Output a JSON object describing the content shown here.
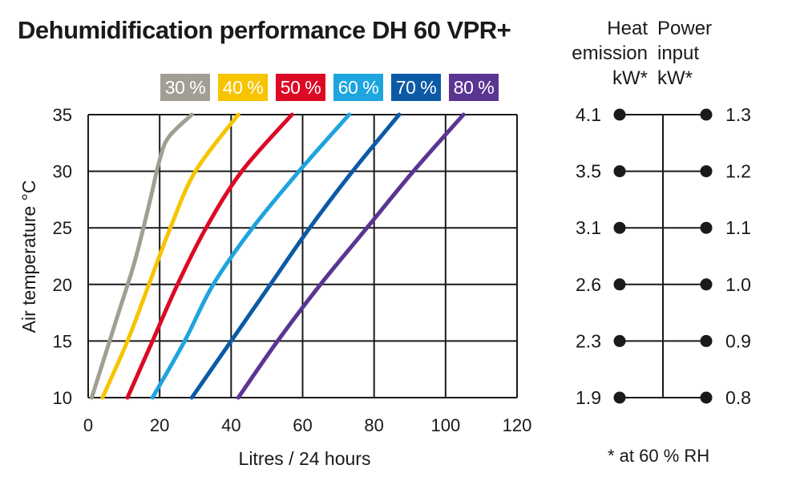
{
  "title": "Dehumidification performance DH 60 VPR+",
  "legend": [
    {
      "label": "30 %",
      "color": "#a19f94"
    },
    {
      "label": "40 %",
      "color": "#f6c400"
    },
    {
      "label": "50 %",
      "color": "#dc0a25"
    },
    {
      "label": "60 %",
      "color": "#1ea4de"
    },
    {
      "label": "70 %",
      "color": "#0c5aa6"
    },
    {
      "label": "80 %",
      "color": "#5a3592"
    }
  ],
  "chart_data": {
    "type": "line",
    "xlabel": "Litres / 24 hours",
    "ylabel": "Air temperature °C",
    "xlim": [
      0,
      120
    ],
    "ylim": [
      10,
      35
    ],
    "xticks": [
      "0",
      "20",
      "40",
      "60",
      "80",
      "100",
      "120"
    ],
    "yticks": [
      "10",
      "15",
      "20",
      "25",
      "30",
      "35"
    ],
    "grid": true,
    "legend_position": "top",
    "series": [
      {
        "name": "30 %",
        "color": "#a19f94",
        "points": [
          [
            1,
            10
          ],
          [
            8,
            17
          ],
          [
            13,
            22
          ],
          [
            17,
            27
          ],
          [
            20,
            31
          ],
          [
            22.5,
            33
          ],
          [
            29,
            35
          ]
        ]
      },
      {
        "name": "40 %",
        "color": "#f6c400",
        "points": [
          [
            4,
            10
          ],
          [
            11,
            15
          ],
          [
            17,
            20
          ],
          [
            23,
            25
          ],
          [
            30,
            30
          ],
          [
            42,
            35
          ]
        ]
      },
      {
        "name": "50 %",
        "color": "#dc0a25",
        "points": [
          [
            11,
            10
          ],
          [
            18,
            15
          ],
          [
            25,
            20
          ],
          [
            33,
            25
          ],
          [
            43,
            30
          ],
          [
            57,
            35
          ]
        ]
      },
      {
        "name": "60 %",
        "color": "#1ea4de",
        "points": [
          [
            18,
            10
          ],
          [
            27,
            15
          ],
          [
            35,
            20
          ],
          [
            46,
            25
          ],
          [
            59,
            30
          ],
          [
            73,
            35
          ]
        ]
      },
      {
        "name": "70 %",
        "color": "#0c5aa6",
        "points": [
          [
            29,
            10
          ],
          [
            40,
            15
          ],
          [
            51,
            20
          ],
          [
            62,
            25
          ],
          [
            74,
            30
          ],
          [
            87,
            35
          ]
        ]
      },
      {
        "name": "80 %",
        "color": "#5a3592",
        "points": [
          [
            42,
            10
          ],
          [
            53,
            15
          ],
          [
            65,
            20
          ],
          [
            78,
            25
          ],
          [
            91,
            30
          ],
          [
            105,
            35
          ]
        ]
      }
    ]
  },
  "side_scale": {
    "heat_header": "Heat\nemission\nkW*",
    "power_header": "Power\ninput\nkW*",
    "rows": [
      {
        "temp": 35,
        "heat": "4.1",
        "power": "1.3"
      },
      {
        "temp": 30,
        "heat": "3.5",
        "power": "1.2"
      },
      {
        "temp": 25,
        "heat": "3.1",
        "power": "1.1"
      },
      {
        "temp": 20,
        "heat": "2.6",
        "power": "1.0"
      },
      {
        "temp": 15,
        "heat": "2.3",
        "power": "0.9"
      },
      {
        "temp": 10,
        "heat": "1.9",
        "power": "0.8"
      }
    ],
    "footnote": "* at 60 % RH"
  }
}
